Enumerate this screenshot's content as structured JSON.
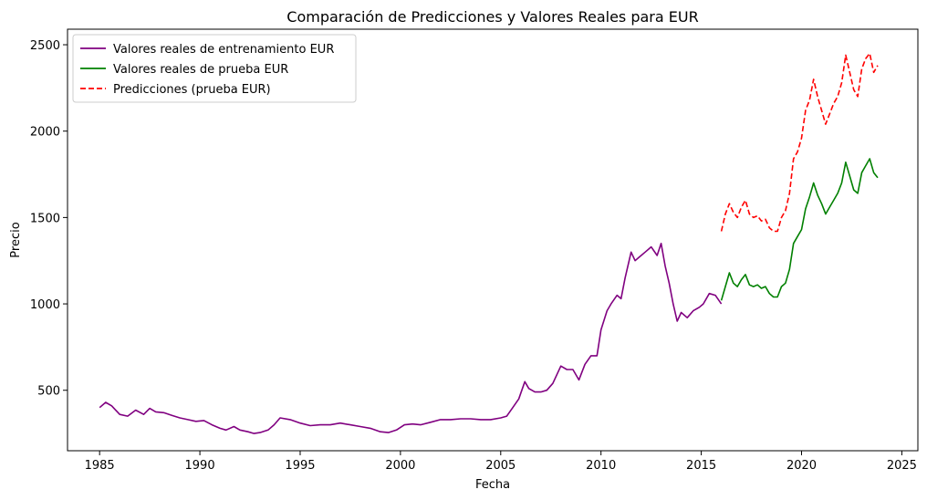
{
  "chart_data": {
    "type": "line",
    "title": "Comparación de Predicciones y Valores Reales para EUR",
    "xlabel": "Fecha",
    "ylabel": "Precio",
    "xlim": [
      1983.4,
      2025.8
    ],
    "ylim": [
      150,
      2590
    ],
    "xticks": [
      1985,
      1990,
      1995,
      2000,
      2005,
      2010,
      2015,
      2020,
      2025
    ],
    "yticks": [
      500,
      1000,
      1500,
      2000,
      2500
    ],
    "legend_position": "top-left",
    "grid": false,
    "series": [
      {
        "name": "Valores reales de entrenamiento EUR",
        "color": "#800080",
        "style": "solid",
        "x": [
          1985.0,
          1985.3,
          1985.6,
          1986.0,
          1986.4,
          1986.8,
          1987.2,
          1987.5,
          1987.8,
          1988.2,
          1988.6,
          1989.0,
          1989.4,
          1989.8,
          1990.2,
          1990.6,
          1991.0,
          1991.3,
          1991.7,
          1992.0,
          1992.4,
          1992.7,
          1993.0,
          1993.4,
          1993.7,
          1994.0,
          1994.5,
          1995.0,
          1995.5,
          1996.0,
          1996.5,
          1997.0,
          1997.5,
          1998.0,
          1998.5,
          1999.0,
          1999.4,
          1999.8,
          2000.2,
          2000.6,
          2001.0,
          2001.5,
          2002.0,
          2002.5,
          2003.0,
          2003.5,
          2004.0,
          2004.5,
          2005.0,
          2005.3,
          2005.6,
          2005.9,
          2006.2,
          2006.4,
          2006.7,
          2007.0,
          2007.3,
          2007.6,
          2008.0,
          2008.3,
          2008.6,
          2008.9,
          2009.2,
          2009.5,
          2009.8,
          2010.0,
          2010.3,
          2010.5,
          2010.8,
          2011.0,
          2011.2,
          2011.5,
          2011.7,
          2011.9,
          2012.2,
          2012.5,
          2012.8,
          2013.0,
          2013.2,
          2013.4,
          2013.6,
          2013.8,
          2014.0,
          2014.3,
          2014.6,
          2014.9,
          2015.1,
          2015.4,
          2015.7,
          2016.0
        ],
        "y": [
          400,
          430,
          410,
          360,
          350,
          385,
          360,
          395,
          375,
          370,
          355,
          340,
          330,
          320,
          325,
          300,
          280,
          270,
          290,
          270,
          260,
          250,
          255,
          270,
          300,
          340,
          330,
          310,
          295,
          300,
          300,
          310,
          300,
          290,
          280,
          260,
          255,
          270,
          300,
          305,
          300,
          315,
          330,
          330,
          335,
          335,
          330,
          330,
          340,
          350,
          400,
          450,
          550,
          510,
          490,
          490,
          500,
          540,
          640,
          620,
          620,
          560,
          650,
          700,
          700,
          850,
          960,
          1000,
          1050,
          1030,
          1150,
          1300,
          1250,
          1270,
          1300,
          1330,
          1280,
          1350,
          1220,
          1120,
          1000,
          900,
          950,
          920,
          960,
          980,
          1000,
          1060,
          1050,
          1000
        ]
      },
      {
        "name": "Valores reales de prueba EUR",
        "color": "#008000",
        "style": "solid",
        "x": [
          2016.0,
          2016.2,
          2016.4,
          2016.6,
          2016.8,
          2017.0,
          2017.2,
          2017.4,
          2017.6,
          2017.8,
          2018.0,
          2018.2,
          2018.4,
          2018.6,
          2018.8,
          2019.0,
          2019.2,
          2019.4,
          2019.6,
          2019.8,
          2020.0,
          2020.2,
          2020.4,
          2020.6,
          2020.8,
          2021.0,
          2021.2,
          2021.4,
          2021.6,
          2021.8,
          2022.0,
          2022.2,
          2022.4,
          2022.6,
          2022.8,
          2023.0,
          2023.2,
          2023.4,
          2023.6,
          2023.8
        ],
        "y": [
          1020,
          1100,
          1180,
          1120,
          1100,
          1140,
          1170,
          1110,
          1100,
          1110,
          1090,
          1100,
          1060,
          1040,
          1040,
          1100,
          1120,
          1200,
          1350,
          1390,
          1430,
          1550,
          1620,
          1700,
          1630,
          1580,
          1520,
          1560,
          1600,
          1640,
          1700,
          1820,
          1740,
          1660,
          1640,
          1760,
          1800,
          1840,
          1760,
          1730
        ]
      },
      {
        "name": "Predicciones (prueba EUR)",
        "color": "#ff0000",
        "style": "dashed",
        "x": [
          2016.0,
          2016.2,
          2016.4,
          2016.6,
          2016.8,
          2017.0,
          2017.2,
          2017.4,
          2017.6,
          2017.8,
          2018.0,
          2018.2,
          2018.4,
          2018.6,
          2018.8,
          2019.0,
          2019.2,
          2019.4,
          2019.6,
          2019.8,
          2020.0,
          2020.2,
          2020.4,
          2020.6,
          2020.8,
          2021.0,
          2021.2,
          2021.4,
          2021.6,
          2021.8,
          2022.0,
          2022.2,
          2022.4,
          2022.6,
          2022.8,
          2023.0,
          2023.2,
          2023.4,
          2023.6,
          2023.8
        ],
        "y": [
          1420,
          1520,
          1580,
          1530,
          1500,
          1560,
          1600,
          1520,
          1500,
          1510,
          1480,
          1490,
          1440,
          1420,
          1420,
          1500,
          1540,
          1640,
          1840,
          1880,
          1960,
          2120,
          2180,
          2300,
          2200,
          2120,
          2040,
          2100,
          2160,
          2200,
          2280,
          2440,
          2340,
          2240,
          2200,
          2360,
          2420,
          2450,
          2340,
          2380
        ]
      }
    ]
  }
}
